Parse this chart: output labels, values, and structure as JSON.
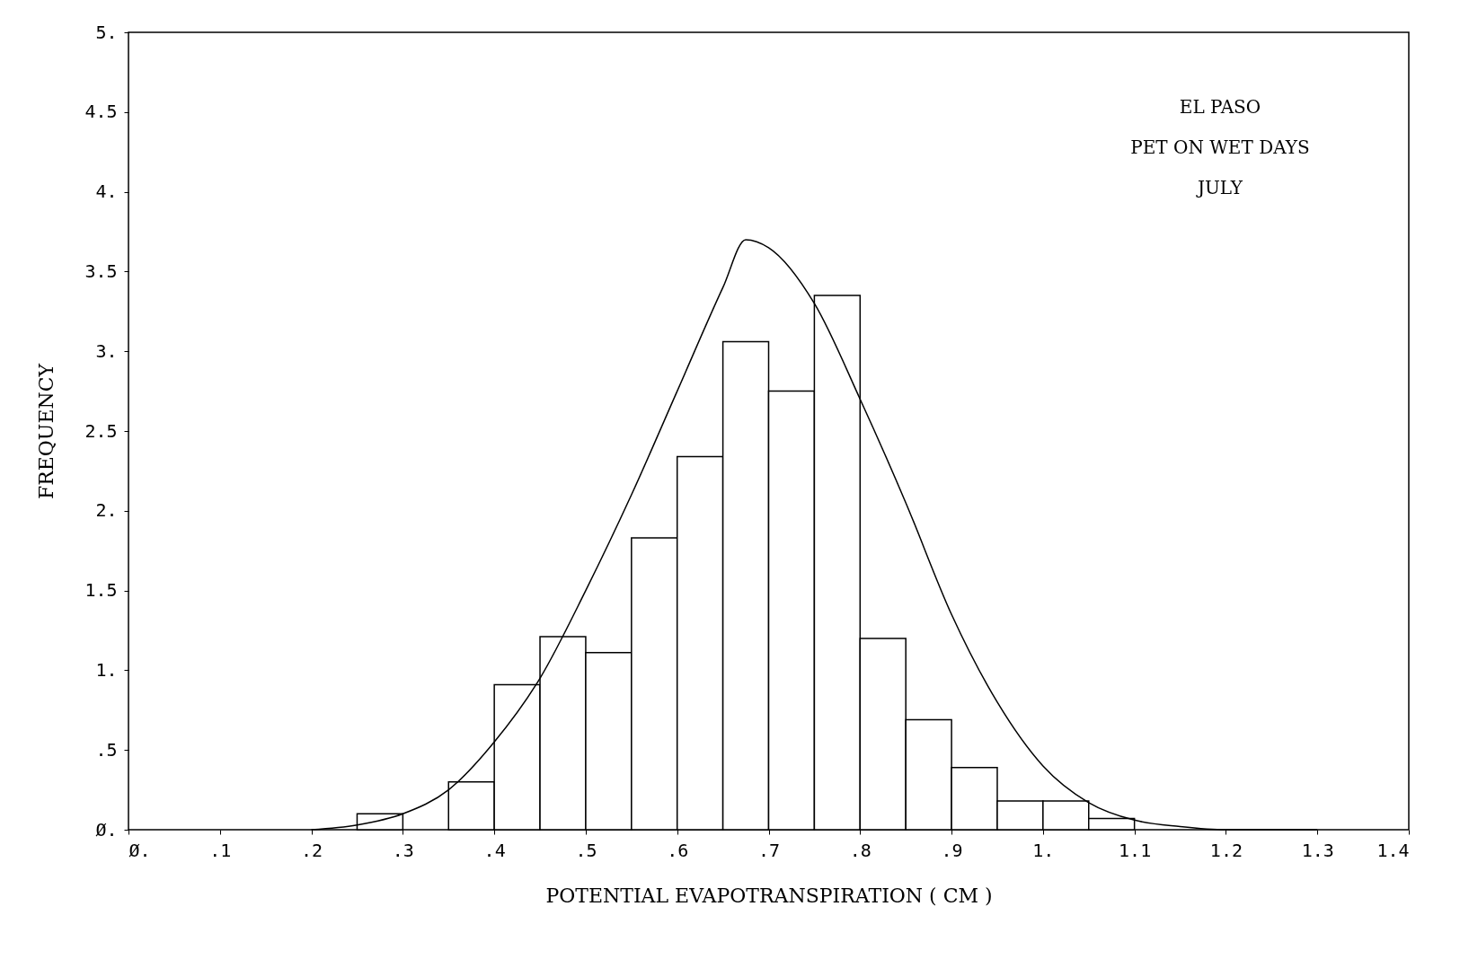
{
  "chart_data": {
    "type": "histogram",
    "xlabel": "POTENTIAL EVAPOTRANSPIRATION ( CM )",
    "ylabel": "FREQUENCY",
    "annotations": [
      "EL PASO",
      "PET ON WET DAYS",
      "JULY"
    ],
    "bins": [
      0.25,
      0.3,
      0.35,
      0.4,
      0.45,
      0.5,
      0.55,
      0.6,
      0.65,
      0.7,
      0.75,
      0.8,
      0.85,
      0.9,
      0.95,
      1.0,
      1.05,
      1.1
    ],
    "values": [
      0.1,
      null,
      0.3,
      0.91,
      1.21,
      1.11,
      1.83,
      2.34,
      3.06,
      2.75,
      3.35,
      1.2,
      0.69,
      0.39,
      0.18,
      0.18,
      0.07
    ],
    "color": "#ffffff",
    "series": [
      {
        "type": "line",
        "color": "#000000",
        "x": [
          0.2,
          0.25,
          0.3,
          0.35,
          0.4,
          0.45,
          0.5,
          0.55,
          0.6,
          0.65,
          0.675,
          0.7,
          0.75,
          0.8,
          0.85,
          0.9,
          0.95,
          1.0,
          1.05,
          1.1,
          1.15,
          1.2,
          1.3
        ],
        "values": [
          0,
          0.03,
          0.1,
          0.25,
          0.55,
          0.95,
          1.5,
          2.1,
          2.75,
          3.4,
          3.7,
          3.65,
          3.3,
          2.7,
          2.05,
          1.35,
          0.8,
          0.4,
          0.17,
          0.06,
          0.02,
          0,
          0
        ]
      }
    ],
    "xlim": [
      0,
      1.4
    ],
    "xticks": [
      {
        "value": 0,
        "label": "Ø."
      },
      {
        "value": 0.1,
        "label": ".1"
      },
      {
        "value": 0.2,
        "label": ".2"
      },
      {
        "value": 0.3,
        "label": ".3"
      },
      {
        "value": 0.4,
        "label": ".4"
      },
      {
        "value": 0.5,
        "label": ".5"
      },
      {
        "value": 0.6,
        "label": ".6"
      },
      {
        "value": 0.7,
        "label": ".7"
      },
      {
        "value": 0.8,
        "label": ".8"
      },
      {
        "value": 0.9,
        "label": ".9"
      },
      {
        "value": 1,
        "label": "1."
      },
      1.1,
      1.2,
      1.3,
      1.4
    ],
    "ylim": [
      0,
      5
    ],
    "yticks": [
      {
        "value": 0,
        "label": "Ø."
      },
      {
        "value": 0.5,
        "label": ".5"
      },
      {
        "value": 1,
        "label": "1."
      },
      1.5,
      {
        "value": 2,
        "label": "2."
      },
      2.5,
      {
        "value": 3,
        "label": "3."
      },
      3.5,
      {
        "value": 4,
        "label": "4."
      },
      4.5,
      {
        "value": 5,
        "label": "5."
      }
    ],
    "grid": false
  }
}
